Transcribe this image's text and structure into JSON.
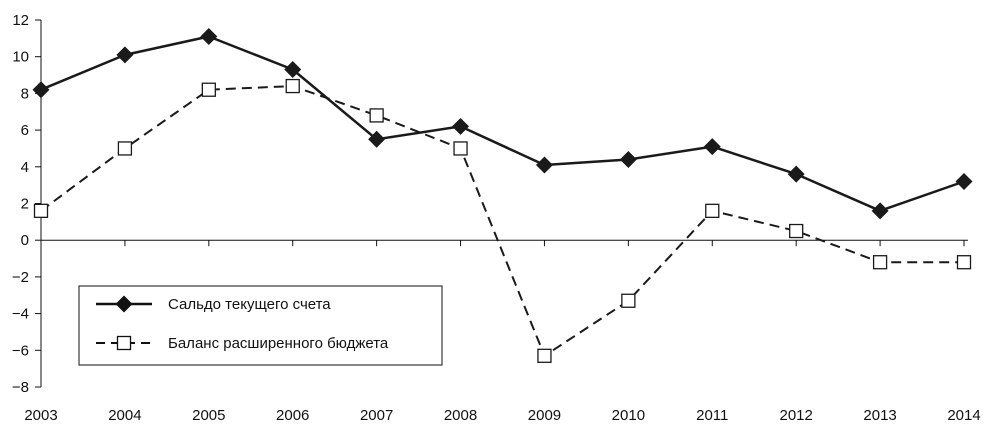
{
  "chart_data": {
    "type": "line",
    "categories": [
      "2003",
      "2004",
      "2005",
      "2006",
      "2007",
      "2008",
      "2009",
      "2010",
      "2011",
      "2012",
      "2013",
      "2014"
    ],
    "ylim": [
      -8,
      12
    ],
    "yticks": [
      -8,
      -6,
      -4,
      -2,
      0,
      2,
      4,
      6,
      8,
      10,
      12
    ],
    "ytick_labels": [
      "−8",
      "−6",
      "−4",
      "−2",
      "0",
      "2",
      "4",
      "6",
      "8",
      "10",
      "12"
    ],
    "grid": false,
    "legend_position": "bottom-left",
    "series": [
      {
        "name": "Сальдо текущего счета",
        "marker": "filled-diamond",
        "line_style": "solid",
        "color": "#1a1a1a",
        "values": [
          8.2,
          10.1,
          11.1,
          9.3,
          5.5,
          6.2,
          4.1,
          4.4,
          5.1,
          3.6,
          1.6,
          3.2
        ]
      },
      {
        "name": "Баланс расширенного бюджета",
        "marker": "open-square",
        "line_style": "dashed",
        "color": "#1a1a1a",
        "values": [
          1.6,
          5.0,
          8.2,
          8.4,
          6.8,
          5.0,
          -6.3,
          -3.3,
          1.6,
          0.5,
          -1.2,
          -1.2
        ]
      }
    ]
  }
}
